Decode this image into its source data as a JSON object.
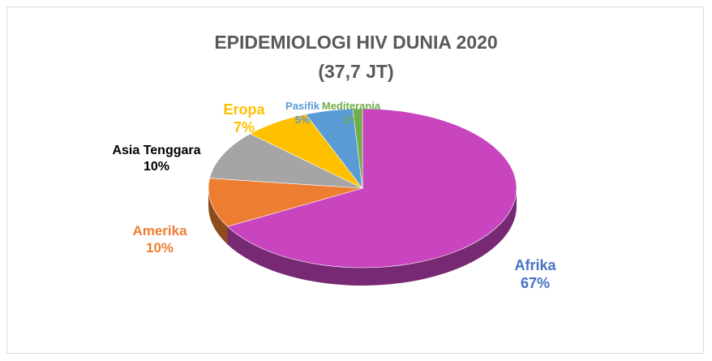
{
  "chart_data": {
    "type": "pie",
    "title": "EPIDEMIOLOGI HIV DUNIA 2020 (37,7 JT)",
    "categories": [
      "Afrika",
      "Amerika",
      "Asia Tenggara",
      "Eropa",
      "Pasifik",
      "Mediterania"
    ],
    "values": [
      67,
      10,
      10,
      7,
      5,
      1
    ],
    "value_labels": [
      "67%",
      "10%",
      "10%",
      "7%",
      "5%",
      "1%"
    ],
    "colors": [
      "#c845bf",
      "#ed7d31",
      "#a5a5a5",
      "#ffc000",
      "#5b9bd5",
      "#70ad47"
    ],
    "label_colors": [
      "#4472c4",
      "#ed7d31",
      "#000000",
      "#ffc000",
      "#5b9bd5",
      "#70ad47"
    ]
  }
}
